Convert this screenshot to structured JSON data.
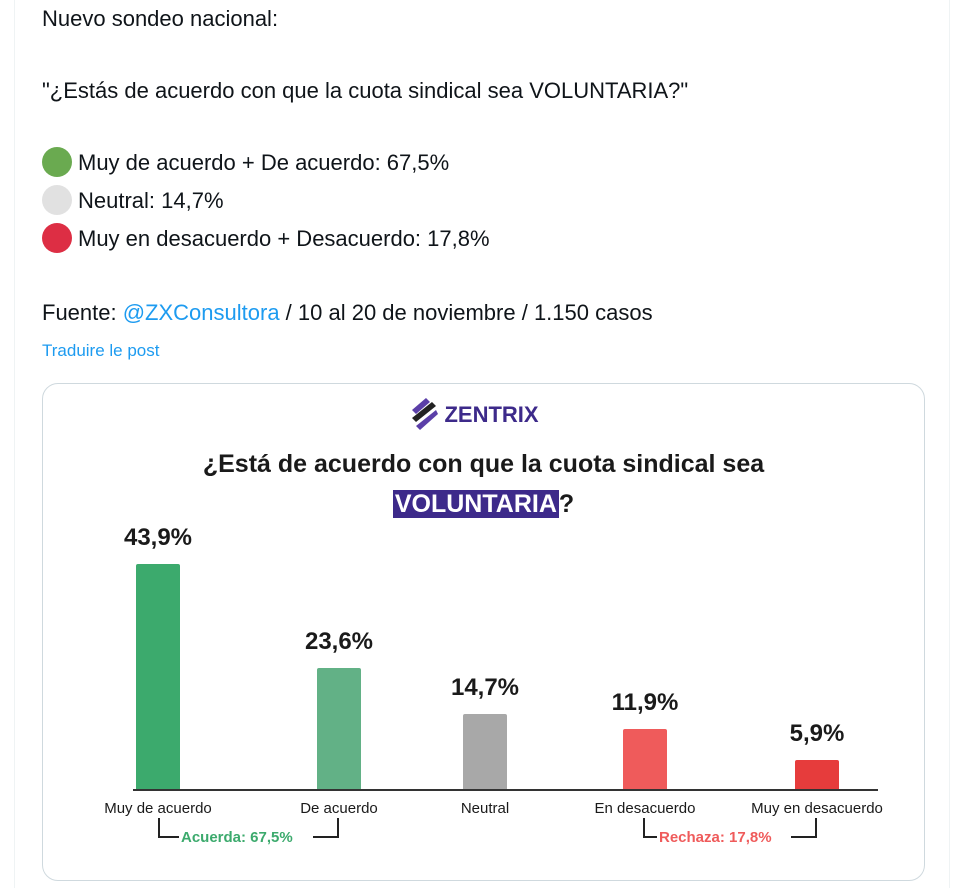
{
  "post": {
    "intro": "Nuevo sondeo nacional:",
    "question": "\"¿Estás de acuerdo con que la cuota sindical sea VOLUNTARIA?\"",
    "results": [
      {
        "label": "Muy de acuerdo + De acuerdo: 67,5%",
        "color": "#6aaa50"
      },
      {
        "label": "Neutral: 14,7%",
        "color": "#e1e1e1"
      },
      {
        "label": "Muy en desacuerdo + Desacuerdo: 17,8%",
        "color": "#dd2e44"
      }
    ],
    "source_prefix": "Fuente: ",
    "source_handle": "@ZXConsultora",
    "source_suffix": " / 10 al 20 de noviembre / 1.150 casos",
    "translate": "Traduire le post"
  },
  "card": {
    "brand": "ZENTRIX",
    "title_line1": "¿Está de acuerdo con que la cuota sindical sea",
    "title_highlight": "VOLUNTARIA",
    "title_end": "?"
  },
  "chart_data": {
    "type": "bar",
    "title": "¿Está de acuerdo con que la cuota sindical sea VOLUNTARIA?",
    "categories": [
      "Muy de acuerdo",
      "De acuerdo",
      "Neutral",
      "En desacuerdo",
      "Muy en desacuerdo"
    ],
    "values": [
      43.9,
      23.6,
      14.7,
      11.9,
      5.9
    ],
    "labels": [
      "43,9%",
      "23,6%",
      "14,7%",
      "11,9%",
      "5,9%"
    ],
    "colors": [
      "#3caa6d",
      "#62b186",
      "#a8a8a8",
      "#ef5b5b",
      "#e63c3c"
    ],
    "ylim": [
      0,
      45
    ],
    "annotations": [
      {
        "text": "Acuerda: 67,5%",
        "color": "#3caa6d"
      },
      {
        "text": "Rechaza: 17,8%",
        "color": "#ef5b5b"
      }
    ]
  }
}
